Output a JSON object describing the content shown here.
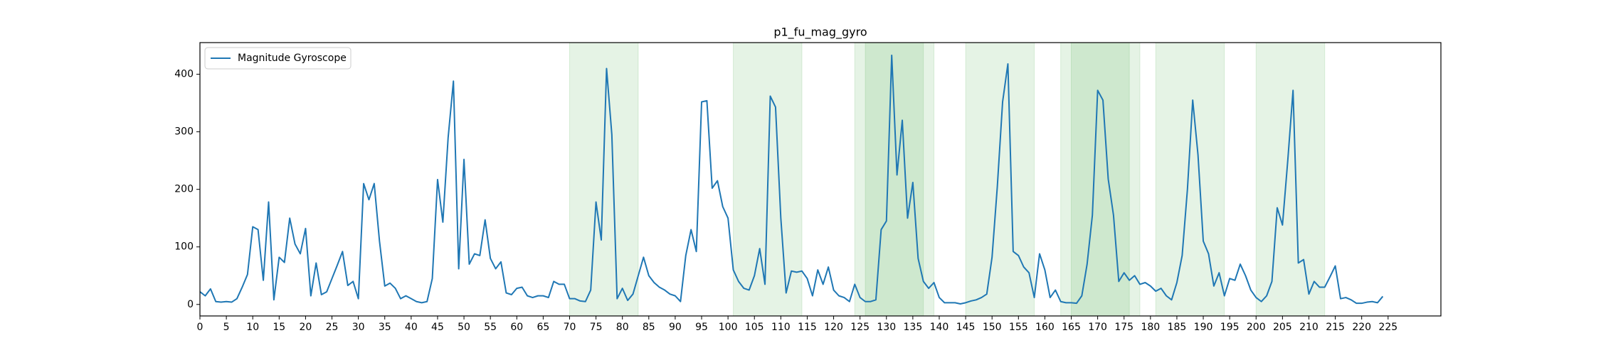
{
  "chart_data": {
    "type": "line",
    "title": "p1_fu_mag_gyro",
    "x": [
      0,
      1,
      2,
      3,
      4,
      5,
      6,
      7,
      8,
      9,
      10,
      11,
      12,
      13,
      14,
      15,
      16,
      17,
      18,
      19,
      20,
      21,
      22,
      23,
      24,
      25,
      26,
      27,
      28,
      29,
      30,
      31,
      32,
      33,
      34,
      35,
      36,
      37,
      38,
      39,
      40,
      41,
      42,
      43,
      44,
      45,
      46,
      47,
      48,
      49,
      50,
      51,
      52,
      53,
      54,
      55,
      56,
      57,
      58,
      59,
      60,
      61,
      62,
      63,
      64,
      65,
      66,
      67,
      68,
      69,
      70,
      71,
      72,
      73,
      74,
      75,
      76,
      77,
      78,
      79,
      80,
      81,
      82,
      83,
      84,
      85,
      86,
      87,
      88,
      89,
      90,
      91,
      92,
      93,
      94,
      95,
      96,
      97,
      98,
      99,
      100,
      101,
      102,
      103,
      104,
      105,
      106,
      107,
      108,
      109,
      110,
      111,
      112,
      113,
      114,
      115,
      116,
      117,
      118,
      119,
      120,
      121,
      122,
      123,
      124,
      125,
      126,
      127,
      128,
      129,
      130,
      131,
      132,
      133,
      134,
      135,
      136,
      137,
      138,
      139,
      140,
      141,
      142,
      143,
      144,
      145,
      146,
      147,
      148,
      149,
      150,
      151,
      152,
      153,
      154,
      155,
      156,
      157,
      158,
      159,
      160,
      161,
      162,
      163,
      164,
      165,
      166,
      167,
      168,
      169,
      170,
      171,
      172,
      173,
      174,
      175,
      176,
      177,
      178,
      179,
      180,
      181,
      182,
      183,
      184,
      185,
      186,
      187,
      188,
      189,
      190,
      191,
      192,
      193,
      194,
      195,
      196,
      197,
      198,
      199,
      200,
      201,
      202,
      203,
      204,
      205,
      206,
      207,
      208,
      209,
      210,
      211,
      212,
      213,
      214,
      215,
      216,
      217,
      218,
      219,
      220,
      221,
      222,
      223,
      224
    ],
    "series": [
      {
        "name": "Magnitude Gyroscope",
        "color": "#1f77b4",
        "values": [
          22,
          15,
          27,
          5,
          4,
          5,
          4,
          10,
          30,
          52,
          135,
          130,
          42,
          178,
          8,
          82,
          73,
          150,
          105,
          88,
          132,
          15,
          72,
          17,
          22,
          45,
          68,
          92,
          33,
          40,
          10,
          210,
          182,
          210,
          110,
          32,
          37,
          28,
          10,
          15,
          10,
          5,
          3,
          5,
          45,
          217,
          143,
          290,
          388,
          62,
          252,
          70,
          88,
          85,
          147,
          80,
          62,
          74,
          20,
          17,
          28,
          30,
          15,
          12,
          15,
          15,
          12,
          40,
          35,
          35,
          10,
          10,
          6,
          5,
          25,
          178,
          112,
          410,
          295,
          10,
          28,
          7,
          18,
          50,
          82,
          50,
          38,
          30,
          25,
          18,
          15,
          5,
          85,
          130,
          92,
          352,
          354,
          202,
          215,
          170,
          150,
          60,
          40,
          28,
          25,
          50,
          97,
          35,
          362,
          343,
          150,
          20,
          58,
          56,
          58,
          45,
          15,
          60,
          35,
          65,
          25,
          15,
          12,
          5,
          35,
          12,
          5,
          5,
          8,
          130,
          145,
          433,
          225,
          320,
          150,
          212,
          80,
          40,
          28,
          38,
          12,
          3,
          3,
          3,
          1,
          3,
          6,
          8,
          12,
          18,
          82,
          205,
          352,
          418,
          92,
          85,
          65,
          55,
          12,
          88,
          60,
          12,
          25,
          5,
          3,
          3,
          2,
          15,
          70,
          155,
          372,
          355,
          218,
          155,
          40,
          55,
          42,
          50,
          35,
          38,
          32,
          23,
          28,
          15,
          8,
          38,
          85,
          200,
          355,
          260,
          110,
          88,
          32,
          55,
          15,
          45,
          42,
          70,
          50,
          25,
          12,
          5,
          15,
          40,
          168,
          138,
          250,
          372,
          72,
          78,
          18,
          40,
          30,
          30,
          48,
          67,
          10,
          12,
          8,
          2,
          2,
          4,
          5,
          3,
          14
        ]
      }
    ],
    "spans": [
      [
        70,
        83
      ],
      [
        101,
        114
      ],
      [
        124,
        139
      ],
      [
        126,
        137
      ],
      [
        145,
        158
      ],
      [
        163,
        178
      ],
      [
        165,
        176
      ],
      [
        181,
        194
      ],
      [
        200,
        213
      ]
    ],
    "span_color": "#2ca02c",
    "xlim": [
      0,
      235
    ],
    "xticks": [
      0,
      5,
      10,
      15,
      20,
      25,
      30,
      35,
      40,
      45,
      50,
      55,
      60,
      65,
      70,
      75,
      80,
      85,
      90,
      95,
      100,
      105,
      110,
      115,
      120,
      125,
      130,
      135,
      140,
      145,
      150,
      155,
      160,
      165,
      170,
      175,
      180,
      185,
      190,
      195,
      200,
      205,
      210,
      215,
      220,
      225
    ],
    "ylim": [
      -20,
      455
    ],
    "yticks": [
      0,
      100,
      200,
      300,
      400
    ],
    "legend": "upper left"
  }
}
